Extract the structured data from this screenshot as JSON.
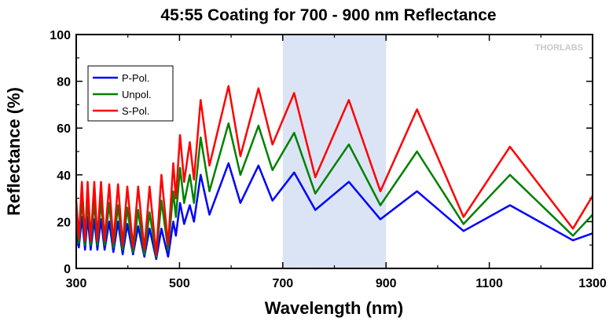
{
  "chart_data": {
    "type": "line",
    "title": "45:55 Coating for 700 - 900 nm Reflectance",
    "xlabel": "Wavelength (nm)",
    "ylabel": "Reflectance (%)",
    "xlim": [
      300,
      1300
    ],
    "ylim": [
      0,
      100
    ],
    "xticks": [
      300,
      500,
      700,
      900,
      1100,
      1300
    ],
    "yticks": [
      0,
      20,
      40,
      60,
      80,
      100
    ],
    "shaded_region": {
      "x": [
        700,
        900
      ],
      "color": "#dbe4f5"
    },
    "legend": {
      "position": "top-left",
      "entries": [
        "P-Pol.",
        "Unpol.",
        "S-Pol."
      ]
    },
    "watermark": "THORLABS",
    "series": [
      {
        "name": "P-Pol.",
        "color": "#0000ff",
        "points": [
          [
            300,
            16
          ],
          [
            305,
            9
          ],
          [
            311,
            22
          ],
          [
            317,
            8
          ],
          [
            322,
            22
          ],
          [
            328,
            8
          ],
          [
            335,
            21
          ],
          [
            341,
            8
          ],
          [
            348,
            21
          ],
          [
            355,
            8
          ],
          [
            364,
            20
          ],
          [
            372,
            7
          ],
          [
            381,
            20
          ],
          [
            390,
            6
          ],
          [
            399,
            19
          ],
          [
            410,
            6
          ],
          [
            420,
            18
          ],
          [
            432,
            5
          ],
          [
            442,
            17
          ],
          [
            455,
            4
          ],
          [
            465,
            17
          ],
          [
            478,
            5
          ],
          [
            488,
            20
          ],
          [
            493,
            14
          ],
          [
            501,
            28
          ],
          [
            509,
            19
          ],
          [
            520,
            27
          ],
          [
            528,
            20
          ],
          [
            541,
            40
          ],
          [
            558,
            23
          ],
          [
            595,
            45
          ],
          [
            618,
            28
          ],
          [
            653,
            44
          ],
          [
            680,
            29
          ],
          [
            722,
            41
          ],
          [
            763,
            25
          ],
          [
            828,
            37
          ],
          [
            889,
            21
          ],
          [
            960,
            33
          ],
          [
            1050,
            16
          ],
          [
            1140,
            27
          ],
          [
            1262,
            12
          ],
          [
            1300,
            15
          ]
        ]
      },
      {
        "name": "Unpol.",
        "color": "#008000",
        "points": [
          [
            300,
            23
          ],
          [
            305,
            11
          ],
          [
            311,
            30
          ],
          [
            317,
            10
          ],
          [
            322,
            30
          ],
          [
            328,
            10
          ],
          [
            335,
            29
          ],
          [
            341,
            10
          ],
          [
            348,
            29
          ],
          [
            355,
            10
          ],
          [
            364,
            28
          ],
          [
            372,
            9
          ],
          [
            381,
            27
          ],
          [
            390,
            8
          ],
          [
            399,
            26
          ],
          [
            410,
            7
          ],
          [
            420,
            25
          ],
          [
            432,
            6
          ],
          [
            442,
            24
          ],
          [
            455,
            5
          ],
          [
            465,
            29
          ],
          [
            478,
            8
          ],
          [
            488,
            33
          ],
          [
            493,
            22
          ],
          [
            501,
            43
          ],
          [
            509,
            28
          ],
          [
            520,
            40
          ],
          [
            528,
            28
          ],
          [
            541,
            56
          ],
          [
            558,
            33
          ],
          [
            595,
            62
          ],
          [
            618,
            40
          ],
          [
            653,
            61
          ],
          [
            680,
            42
          ],
          [
            722,
            58
          ],
          [
            763,
            32
          ],
          [
            828,
            53
          ],
          [
            889,
            27
          ],
          [
            960,
            50
          ],
          [
            1050,
            19
          ],
          [
            1140,
            40
          ],
          [
            1262,
            14
          ],
          [
            1300,
            23
          ]
        ]
      },
      {
        "name": "S-Pol.",
        "color": "#ff0000",
        "points": [
          [
            300,
            29
          ],
          [
            305,
            13
          ],
          [
            311,
            37
          ],
          [
            317,
            12
          ],
          [
            322,
            37
          ],
          [
            328,
            12
          ],
          [
            335,
            37
          ],
          [
            341,
            12
          ],
          [
            348,
            37
          ],
          [
            355,
            12
          ],
          [
            364,
            36
          ],
          [
            372,
            11
          ],
          [
            381,
            36
          ],
          [
            390,
            10
          ],
          [
            399,
            35
          ],
          [
            410,
            9
          ],
          [
            420,
            35
          ],
          [
            432,
            8
          ],
          [
            442,
            35
          ],
          [
            455,
            6
          ],
          [
            465,
            40
          ],
          [
            478,
            10
          ],
          [
            488,
            45
          ],
          [
            493,
            30
          ],
          [
            501,
            57
          ],
          [
            509,
            37
          ],
          [
            520,
            54
          ],
          [
            528,
            38
          ],
          [
            541,
            72
          ],
          [
            558,
            44
          ],
          [
            595,
            78
          ],
          [
            618,
            48
          ],
          [
            653,
            77
          ],
          [
            680,
            53
          ],
          [
            722,
            75
          ],
          [
            763,
            39
          ],
          [
            828,
            72
          ],
          [
            889,
            33
          ],
          [
            960,
            68
          ],
          [
            1050,
            22
          ],
          [
            1140,
            52
          ],
          [
            1262,
            17
          ],
          [
            1300,
            31
          ]
        ]
      }
    ]
  }
}
